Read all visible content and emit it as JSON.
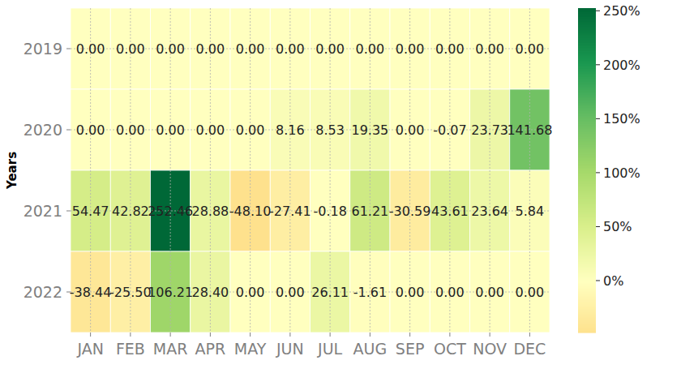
{
  "chart_data": {
    "type": "heatmap",
    "y_label": "Years",
    "categories": [
      "JAN",
      "FEB",
      "MAR",
      "APR",
      "MAY",
      "JUN",
      "JUL",
      "AUG",
      "SEP",
      "OCT",
      "NOV",
      "DEC"
    ],
    "y_categories": [
      "2019",
      "2020",
      "2021",
      "2022"
    ],
    "values": [
      [
        0,
        0,
        0,
        0,
        0,
        0,
        0,
        0,
        0,
        0,
        0,
        0
      ],
      [
        0,
        0,
        0,
        0,
        0,
        8.16,
        8.53,
        19.35,
        0,
        -0.07,
        23.73,
        141.68
      ],
      [
        54.47,
        42.82,
        252.46,
        28.88,
        -48.1,
        -27.41,
        -0.18,
        61.21,
        -30.59,
        43.61,
        23.64,
        5.84
      ],
      [
        -38.44,
        -25.5,
        106.21,
        28.4,
        0,
        0,
        26.11,
        -1.61,
        0,
        0,
        0,
        0
      ]
    ],
    "value_labels": [
      [
        "0.00",
        "0.00",
        "0.00",
        "0.00",
        "0.00",
        "0.00",
        "0.00",
        "0.00",
        "0.00",
        "0.00",
        "0.00",
        "0.00"
      ],
      [
        "0.00",
        "0.00",
        "0.00",
        "0.00",
        "0.00",
        "8.16",
        "8.53",
        "19.35",
        "0.00",
        "-0.07",
        "23.73",
        "141.68"
      ],
      [
        "54.47",
        "42.82",
        "252.46",
        "28.88",
        "-48.10",
        "-27.41",
        "-0.18",
        "61.21",
        "-30.59",
        "43.61",
        "23.64",
        "5.84"
      ],
      [
        "-38.44",
        "-25.50",
        "106.21",
        "28.40",
        "0.00",
        "0.00",
        "26.11",
        "-1.61",
        "0.00",
        "0.00",
        "0.00",
        "0.00"
      ]
    ],
    "data_labels": true,
    "grid": true,
    "color_range": [
      -48.1,
      252.46
    ],
    "color_ticks": [
      {
        "value": 0,
        "label": "0%"
      },
      {
        "value": 50,
        "label": "50%"
      },
      {
        "value": 100,
        "label": "100%"
      },
      {
        "value": 150,
        "label": "150%"
      },
      {
        "value": 200,
        "label": "200%"
      },
      {
        "value": 250,
        "label": "250%"
      }
    ]
  }
}
